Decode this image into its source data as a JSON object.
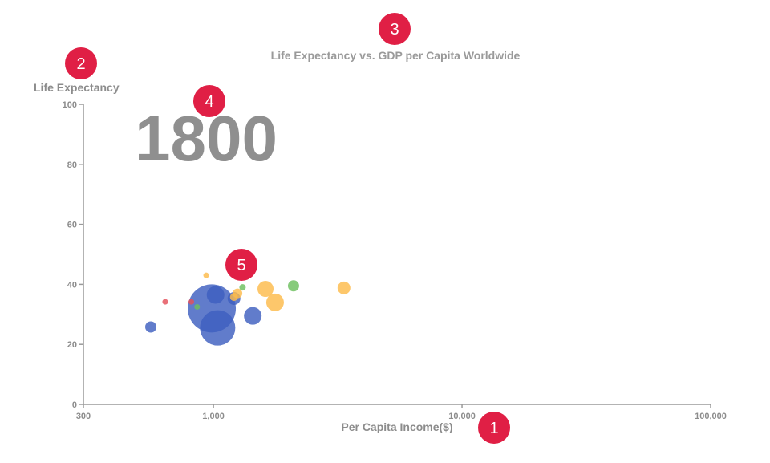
{
  "chart_data": {
    "type": "scatter",
    "title": "Life Expectancy vs. GDP per Capita Worldwide",
    "xlabel": "Per Capita Income($)",
    "ylabel": "Life Expectancy",
    "x_scale": "log",
    "xlim": [
      300,
      100000
    ],
    "ylim": [
      0,
      100
    ],
    "x_ticks": [
      {
        "value": 300,
        "label": "300"
      },
      {
        "value": 1000,
        "label": "1,000"
      },
      {
        "value": 10000,
        "label": "10,000"
      },
      {
        "value": 100000,
        "label": "100,000"
      }
    ],
    "y_ticks": [
      {
        "value": 0,
        "label": "0"
      },
      {
        "value": 20,
        "label": "20"
      },
      {
        "value": 40,
        "label": "40"
      },
      {
        "value": 60,
        "label": "60"
      },
      {
        "value": 80,
        "label": "80"
      },
      {
        "value": 100,
        "label": "100"
      }
    ],
    "grid": false,
    "year": "1800",
    "colors": {
      "blue": "#3e5fbf",
      "yellow": "#fdbb4a",
      "green": "#6cc05e",
      "red": "#e4505a"
    },
    "points": [
      {
        "x": 985,
        "y": 32,
        "size": 30,
        "color": "blue"
      },
      {
        "x": 1040,
        "y": 25.5,
        "size": 22,
        "color": "blue"
      },
      {
        "x": 1020,
        "y": 36.5,
        "size": 11,
        "color": "blue"
      },
      {
        "x": 1440,
        "y": 29.5,
        "size": 11,
        "color": "blue"
      },
      {
        "x": 1210,
        "y": 35.3,
        "size": 8,
        "color": "blue"
      },
      {
        "x": 560,
        "y": 25.8,
        "size": 7,
        "color": "blue"
      },
      {
        "x": 1620,
        "y": 38.5,
        "size": 10,
        "color": "yellow"
      },
      {
        "x": 1770,
        "y": 34,
        "size": 11,
        "color": "yellow"
      },
      {
        "x": 3350,
        "y": 38.8,
        "size": 8,
        "color": "yellow"
      },
      {
        "x": 1250,
        "y": 37,
        "size": 6,
        "color": "yellow"
      },
      {
        "x": 1210,
        "y": 35.8,
        "size": 5,
        "color": "yellow"
      },
      {
        "x": 935,
        "y": 43,
        "size": 3.5,
        "color": "yellow"
      },
      {
        "x": 2100,
        "y": 39.5,
        "size": 7,
        "color": "green"
      },
      {
        "x": 1310,
        "y": 39,
        "size": 4,
        "color": "green"
      },
      {
        "x": 860,
        "y": 32.5,
        "size": 3.5,
        "color": "green"
      },
      {
        "x": 640,
        "y": 34.2,
        "size": 3.5,
        "color": "red"
      },
      {
        "x": 815,
        "y": 34.2,
        "size": 3.5,
        "color": "red"
      }
    ]
  },
  "badges": [
    "1",
    "2",
    "3",
    "4",
    "5"
  ]
}
